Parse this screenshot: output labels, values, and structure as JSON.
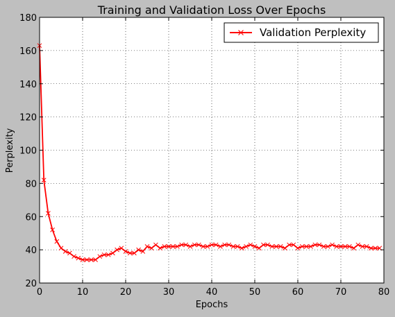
{
  "colors": {
    "figure_background": "#bfbfbf",
    "plot_background": "#ffffff",
    "series": "#ff0000",
    "grid": "#000000"
  },
  "chart_data": {
    "type": "line",
    "title": "Training and Validation Loss Over Epochs",
    "xlabel": "Epochs",
    "ylabel": "Perplexity",
    "xlim": [
      0,
      80
    ],
    "ylim": [
      20,
      180
    ],
    "xticks": [
      0,
      10,
      20,
      30,
      40,
      50,
      60,
      70,
      80
    ],
    "yticks": [
      20,
      40,
      60,
      80,
      100,
      120,
      140,
      160,
      180
    ],
    "grid": true,
    "legend": {
      "placement": "top-right",
      "entries": [
        "Validation Perplexity"
      ]
    },
    "series": [
      {
        "name": "Validation Perplexity",
        "marker": "x",
        "color": "#ff0000",
        "x": [
          0,
          1,
          2,
          3,
          4,
          5,
          6,
          7,
          8,
          9,
          10,
          11,
          12,
          13,
          14,
          15,
          16,
          17,
          18,
          19,
          20,
          21,
          22,
          23,
          24,
          25,
          26,
          27,
          28,
          29,
          30,
          31,
          32,
          33,
          34,
          35,
          36,
          37,
          38,
          39,
          40,
          41,
          42,
          43,
          44,
          45,
          46,
          47,
          48,
          49,
          50,
          51,
          52,
          53,
          54,
          55,
          56,
          57,
          58,
          59,
          60,
          61,
          62,
          63,
          64,
          65,
          66,
          67,
          68,
          69,
          70,
          71,
          72,
          73,
          74,
          75,
          76,
          77,
          78,
          79
        ],
        "y": [
          163,
          82,
          62,
          52,
          45,
          41,
          39,
          38,
          36,
          35,
          34,
          34,
          34,
          34,
          36,
          37,
          37,
          38,
          40,
          41,
          39,
          38,
          38,
          40,
          39,
          42,
          41,
          43,
          41,
          42,
          42,
          42,
          42,
          43,
          43,
          42,
          43,
          43,
          42,
          42,
          43,
          43,
          42,
          43,
          43,
          42,
          42,
          41,
          42,
          43,
          42,
          41,
          43,
          43,
          42,
          42,
          42,
          41,
          43,
          43,
          41,
          42,
          42,
          42,
          43,
          43,
          42,
          42,
          43,
          42,
          42,
          42,
          42,
          41,
          43,
          42,
          42,
          41,
          41,
          41
        ]
      }
    ]
  }
}
